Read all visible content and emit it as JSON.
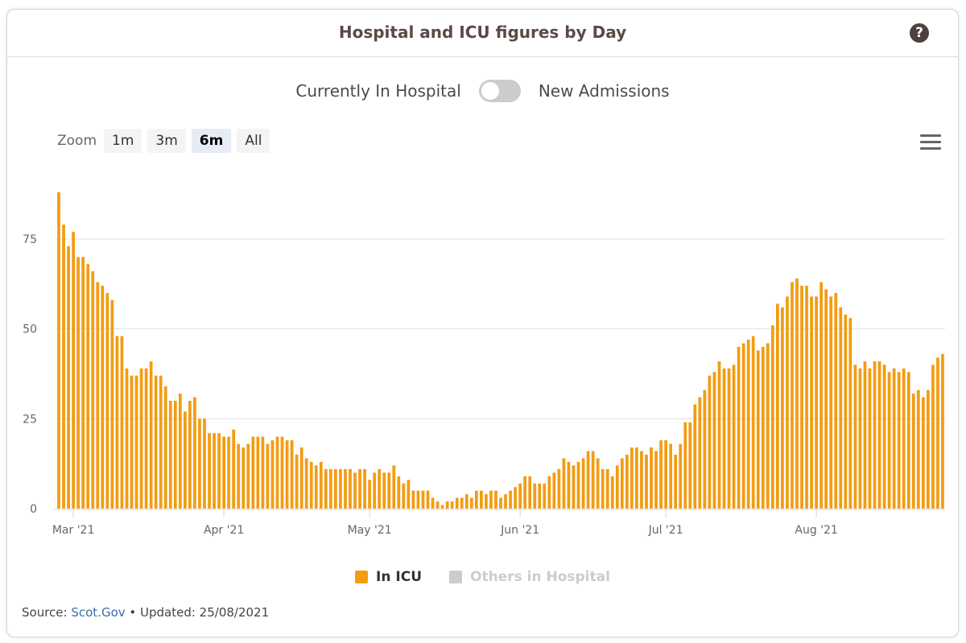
{
  "header": {
    "title": "Hospital and ICU figures by Day",
    "help_icon": "question-circle-icon"
  },
  "toggle": {
    "left_label": "Currently In Hospital",
    "right_label": "New Admissions",
    "state": "off"
  },
  "zoom": {
    "label": "Zoom",
    "buttons": [
      "1m",
      "3m",
      "6m",
      "All"
    ],
    "active": "6m"
  },
  "menu_icon": "hamburger-menu-icon",
  "colors": {
    "icu": "#f39c12",
    "others": "#cccccc",
    "grid": "#e0e0e0"
  },
  "legend": {
    "icu_label": "In ICU",
    "others_label": "Others in Hospital"
  },
  "footer": {
    "source_label": "Source: ",
    "source_link": "Scot.Gov",
    "updated": " • Updated: 25/08/2021"
  },
  "chart_data": {
    "type": "bar",
    "series": [
      {
        "name": "In ICU",
        "start_date": "2021-02-26",
        "values": [
          88,
          79,
          73,
          77,
          70,
          70,
          68,
          66,
          63,
          62,
          60,
          58,
          48,
          48,
          39,
          37,
          37,
          39,
          39,
          41,
          37,
          37,
          34,
          30,
          30,
          32,
          27,
          30,
          31,
          25,
          25,
          21,
          21,
          21,
          20,
          20,
          22,
          18,
          17,
          18,
          20,
          20,
          20,
          18,
          19,
          20,
          20,
          19,
          19,
          15,
          17,
          14,
          13,
          12,
          13,
          11,
          11,
          11,
          11,
          11,
          11,
          10,
          11,
          11,
          8,
          10,
          11,
          10,
          10,
          12,
          9,
          7,
          8,
          5,
          5,
          5,
          5,
          3,
          2,
          1,
          2,
          2,
          3,
          3,
          4,
          3,
          5,
          5,
          4,
          5,
          5,
          3,
          4,
          5,
          6,
          7,
          9,
          9,
          7,
          7,
          7,
          9,
          10,
          11,
          14,
          13,
          12,
          13,
          14,
          16,
          16,
          14,
          11,
          11,
          9,
          12,
          14,
          15,
          17,
          17,
          16,
          15,
          17,
          16,
          19,
          19,
          18,
          15,
          18,
          24,
          24,
          29,
          31,
          33,
          37,
          38,
          41,
          39,
          39,
          40,
          45,
          46,
          47,
          48,
          44,
          45,
          46,
          51,
          57,
          56,
          59,
          63,
          64,
          62,
          62,
          59,
          59,
          63,
          61,
          59,
          60,
          56,
          54,
          53,
          40,
          39,
          41,
          39,
          41,
          41,
          40,
          38,
          39,
          38,
          39,
          38,
          32,
          33,
          31,
          33,
          40,
          42,
          43
        ]
      },
      {
        "name": "Others in Hospital",
        "hidden": true,
        "values": []
      }
    ],
    "x_ticks": [
      "Mar '21",
      "Apr '21",
      "May '21",
      "Jun '21",
      "Jul '21",
      "Aug '21"
    ],
    "y_ticks": [
      0,
      25,
      50,
      75
    ],
    "ylim": [
      0,
      90
    ],
    "grid": true,
    "legend_position": "bottom-center"
  }
}
